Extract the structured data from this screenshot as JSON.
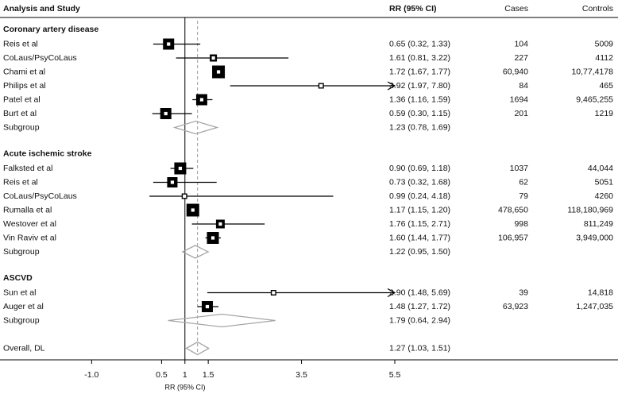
{
  "chart_data": {
    "type": "forest",
    "columns": [
      "Analysis and Study",
      "RR (95% CI)",
      "Cases",
      "Controls"
    ],
    "x_label": "RR (95% CI)",
    "xlim": [
      -1.5,
      5.5
    ],
    "xticks": [
      {
        "value": -1,
        "label": "-1.0"
      },
      0.5,
      1,
      1.5,
      3.5,
      5.5
    ],
    "groups": [
      {
        "name": "Coronary artery disease",
        "studies": [
          {
            "name": "Reis et al",
            "rr": 0.65,
            "lo": 0.32,
            "hi": 1.33,
            "ci_label": "0.65 (0.32, 1.33)",
            "weight": 10,
            "cases": "104",
            "controls": "5009"
          },
          {
            "name": "CoLaus/PsyCoLaus",
            "rr": 1.61,
            "lo": 0.81,
            "hi": 3.22,
            "ci_label": "1.61 (0.81, 3.22)",
            "weight": 5,
            "cases": "227",
            "controls": "4112"
          },
          {
            "name": "Chami et al",
            "rr": 1.72,
            "lo": 1.67,
            "hi": 1.77,
            "ci_label": "1.72 (1.67, 1.77)",
            "weight": 12,
            "cases": "60,940",
            "controls": "10,77,4178"
          },
          {
            "name": "Philips et al",
            "rr": 3.92,
            "lo": 1.97,
            "hi": 7.8,
            "ci_label": "3.92 (1.97, 7.80)",
            "weight": 3,
            "cases": "84",
            "controls": "465"
          },
          {
            "name": "Patel et al",
            "rr": 1.36,
            "lo": 1.16,
            "hi": 1.59,
            "ci_label": "1.36 (1.16, 1.59)",
            "weight": 10,
            "cases": "1694",
            "controls": "9,465,255"
          },
          {
            "name": "Burt et al",
            "rr": 0.59,
            "lo": 0.3,
            "hi": 1.15,
            "ci_label": "0.59 (0.30, 1.15)",
            "weight": 10,
            "cases": "201",
            "controls": "1219"
          }
        ],
        "subgroup": {
          "name": "Subgroup",
          "rr": 1.23,
          "lo": 0.78,
          "hi": 1.69,
          "ci_label": "1.23 (0.78, 1.69)"
        }
      },
      {
        "name": "Acute ischemic stroke",
        "studies": [
          {
            "name": "Falksted et al",
            "rr": 0.9,
            "lo": 0.69,
            "hi": 1.18,
            "ci_label": "0.90 (0.69, 1.18)",
            "weight": 11,
            "cases": "1037",
            "controls": "44,044"
          },
          {
            "name": "Reis et al",
            "rr": 0.73,
            "lo": 0.32,
            "hi": 1.68,
            "ci_label": "0.73 (0.32, 1.68)",
            "weight": 9,
            "cases": "62",
            "controls": "5051"
          },
          {
            "name": "CoLaus/PsyCoLaus",
            "rr": 0.99,
            "lo": 0.24,
            "hi": 4.18,
            "ci_label": "0.99 (0.24, 4.18)",
            "weight": 3,
            "cases": "79",
            "controls": "4260"
          },
          {
            "name": "Rumalla et al",
            "rr": 1.17,
            "lo": 1.15,
            "hi": 1.2,
            "ci_label": "1.17 (1.15, 1.20)",
            "weight": 12,
            "cases": "478,650",
            "controls": "118,180,969"
          },
          {
            "name": "Westover et al",
            "rr": 1.76,
            "lo": 1.15,
            "hi": 2.71,
            "ci_label": "1.76 (1.15, 2.71)",
            "weight": 7,
            "cases": "998",
            "controls": "811,249"
          },
          {
            "name": "Vin Raviv et al",
            "rr": 1.6,
            "lo": 1.44,
            "hi": 1.77,
            "ci_label": "1.60 (1.44, 1.77)",
            "weight": 11,
            "cases": "106,957",
            "controls": "3,949,000"
          }
        ],
        "subgroup": {
          "name": "Subgroup",
          "rr": 1.22,
          "lo": 0.95,
          "hi": 1.5,
          "ci_label": "1.22 (0.95, 1.50)"
        }
      },
      {
        "name": "ASCVD",
        "studies": [
          {
            "name": "Sun et al",
            "rr": 2.9,
            "lo": 1.48,
            "hi": 5.69,
            "ci_label": "2.90 (1.48, 5.69)",
            "weight": 3,
            "cases": "39",
            "controls": "14,818"
          },
          {
            "name": "Auger et al",
            "rr": 1.48,
            "lo": 1.27,
            "hi": 1.72,
            "ci_label": "1.48 (1.27, 1.72)",
            "weight": 10,
            "cases": "63,923",
            "controls": "1,247,035"
          }
        ],
        "subgroup": {
          "name": "Subgroup",
          "rr": 1.79,
          "lo": 0.64,
          "hi": 2.94,
          "ci_label": "1.79 (0.64, 2.94)"
        }
      }
    ],
    "overall": {
      "name": "Overall, DL",
      "rr": 1.27,
      "lo": 1.03,
      "hi": 1.51,
      "ci_label": "1.27 (1.03, 1.51)"
    }
  }
}
